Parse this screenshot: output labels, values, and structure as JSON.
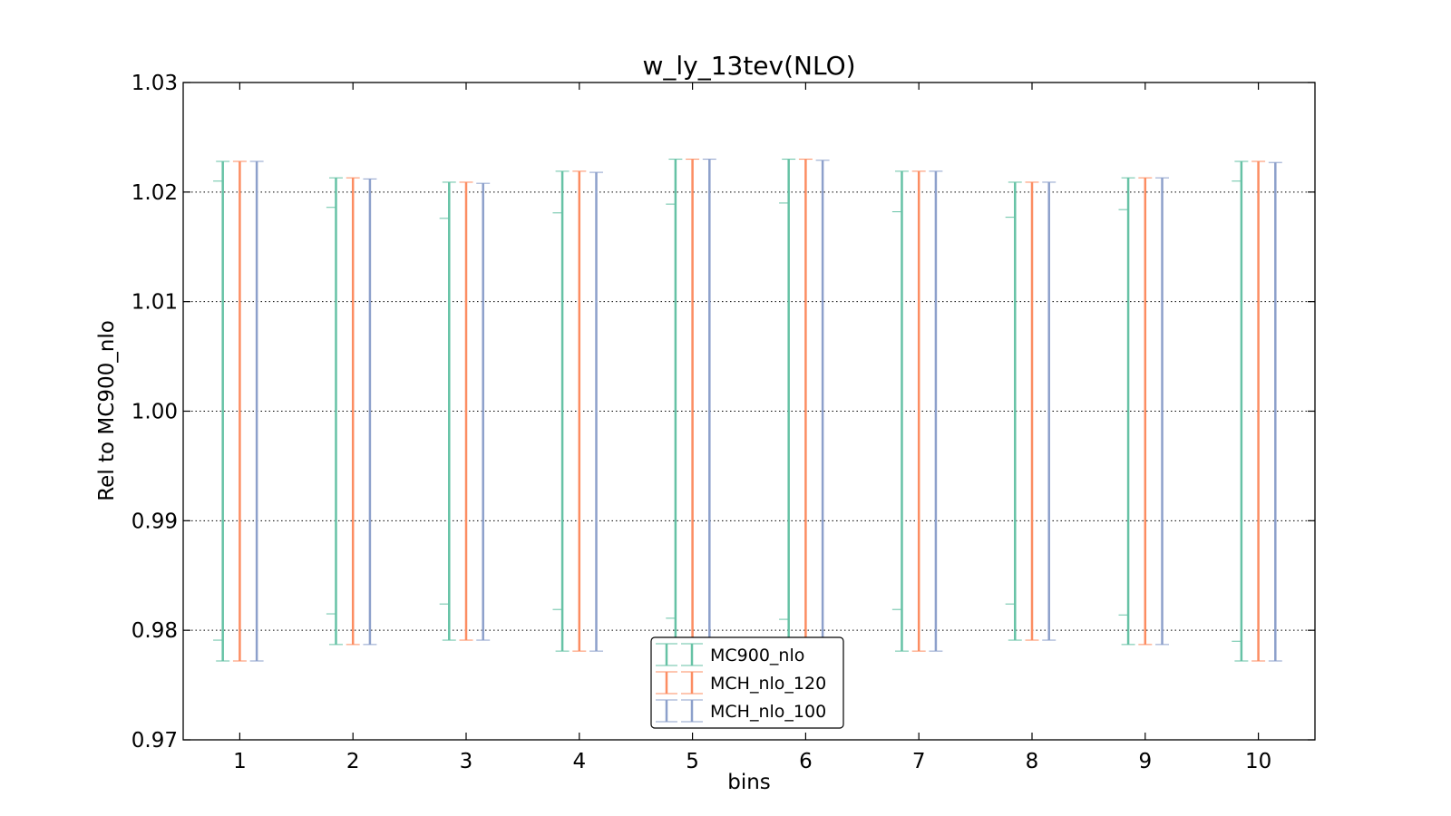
{
  "chart_data": {
    "type": "errorbar",
    "title": "w_ly_13tev(NLO)",
    "xlabel": "bins",
    "ylabel": "Rel to MC900_nlo",
    "ylim": [
      0.97,
      1.03
    ],
    "xlim": [
      0.5,
      10.5
    ],
    "yticks": [
      "0.97",
      "0.98",
      "0.99",
      "1.00",
      "1.01",
      "1.02",
      "1.03"
    ],
    "xticks": [
      "1",
      "2",
      "3",
      "4",
      "5",
      "6",
      "7",
      "8",
      "9",
      "10"
    ],
    "grid": "y-dotted",
    "legend_placement": "lower-center",
    "colors": {
      "MC900_nlo": "#66c2a5",
      "MCH_nlo_120": "#fc8d62",
      "MCH_nlo_100": "#8da0cb"
    },
    "series": [
      {
        "name": "MC900_nlo",
        "x": [
          1,
          2,
          3,
          4,
          5,
          6,
          7,
          8,
          9,
          10
        ],
        "upper": [
          1.0228,
          1.0213,
          1.0209,
          1.0219,
          1.023,
          1.023,
          1.0219,
          1.0209,
          1.0213,
          1.0228
        ],
        "lower": [
          0.9772,
          0.9787,
          0.9791,
          0.9781,
          0.977,
          0.977,
          0.9781,
          0.9791,
          0.9787,
          0.9772
        ],
        "inner_upper": [
          1.021,
          1.0186,
          1.0176,
          1.0181,
          1.0189,
          1.019,
          1.0182,
          1.0177,
          1.0184,
          1.021
        ],
        "inner_lower": [
          0.9791,
          0.9815,
          0.9824,
          0.9819,
          0.9811,
          0.981,
          0.9819,
          0.9824,
          0.9814,
          0.979
        ]
      },
      {
        "name": "MCH_nlo_120",
        "x": [
          1,
          2,
          3,
          4,
          5,
          6,
          7,
          8,
          9,
          10
        ],
        "upper": [
          1.0228,
          1.0213,
          1.0209,
          1.0219,
          1.023,
          1.023,
          1.0219,
          1.0209,
          1.0213,
          1.0228
        ],
        "lower": [
          0.9772,
          0.9787,
          0.9791,
          0.9781,
          0.977,
          0.977,
          0.9781,
          0.9791,
          0.9787,
          0.9772
        ]
      },
      {
        "name": "MCH_nlo_100",
        "x": [
          1,
          2,
          3,
          4,
          5,
          6,
          7,
          8,
          9,
          10
        ],
        "upper": [
          1.0228,
          1.0212,
          1.0208,
          1.0218,
          1.023,
          1.0229,
          1.0219,
          1.0209,
          1.0213,
          1.0227
        ],
        "lower": [
          0.9772,
          0.9787,
          0.9791,
          0.9781,
          0.977,
          0.977,
          0.9781,
          0.9791,
          0.9787,
          0.9772
        ]
      }
    ]
  }
}
